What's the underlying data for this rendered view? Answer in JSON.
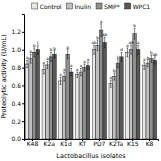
{
  "chart_data": {
    "type": "bar",
    "xlabel": "Lactobacillus isolates",
    "ylabel": "Proteolytic activity (U/mL)",
    "categories": [
      "K48",
      "K2a",
      "K1d",
      "KT",
      "PD7",
      "K2Ta",
      "K15",
      "K8"
    ],
    "series": [
      {
        "name": "Control",
        "color": "#e8e8e8",
        "values": [
          0.84,
          0.78,
          0.65,
          0.72,
          1.0,
          0.62,
          0.97,
          0.82
        ],
        "errors": [
          0.04,
          0.05,
          0.04,
          0.03,
          0.05,
          0.04,
          0.05,
          0.04
        ],
        "annotations": [
          "a",
          "a",
          "a",
          "a",
          "ab",
          "a",
          "a",
          "a"
        ]
      },
      {
        "name": "Inulin",
        "color": "#c0c0c0",
        "values": [
          0.9,
          0.83,
          0.7,
          0.75,
          1.05,
          0.7,
          1.0,
          0.85
        ],
        "errors": [
          0.05,
          0.04,
          0.05,
          0.04,
          0.06,
          0.04,
          0.05,
          0.04
        ],
        "annotations": [
          "b",
          "a",
          "a",
          "a",
          "b",
          "b",
          "ab",
          "a"
        ]
      },
      {
        "name": "SMP*",
        "color": "#909090",
        "values": [
          0.97,
          0.92,
          0.95,
          0.8,
          1.22,
          0.85,
          1.18,
          0.9
        ],
        "errors": [
          0.05,
          0.05,
          0.05,
          0.04,
          0.07,
          0.05,
          0.06,
          0.04
        ],
        "annotations": [
          "b",
          "b",
          "b",
          "a",
          "a",
          "c",
          "b",
          "b"
        ]
      },
      {
        "name": "WPC1",
        "color": "#585858",
        "values": [
          1.0,
          0.95,
          0.75,
          0.82,
          1.08,
          0.92,
          1.0,
          0.88
        ],
        "errors": [
          0.05,
          0.04,
          0.04,
          0.04,
          0.06,
          0.05,
          0.05,
          0.04
        ],
        "annotations": [
          "c",
          "b",
          "a",
          "a",
          "ab",
          "d",
          "a",
          "ab"
        ]
      }
    ],
    "ylim": [
      0.0,
      1.4
    ],
    "yticks": [
      {
        "value": 0.0,
        "label": "0.0"
      },
      0.2,
      0.4,
      0.6,
      0.8,
      {
        "value": 1.0,
        "label": "1.0"
      },
      1.2
    ],
    "grid": false,
    "legend": "top"
  }
}
